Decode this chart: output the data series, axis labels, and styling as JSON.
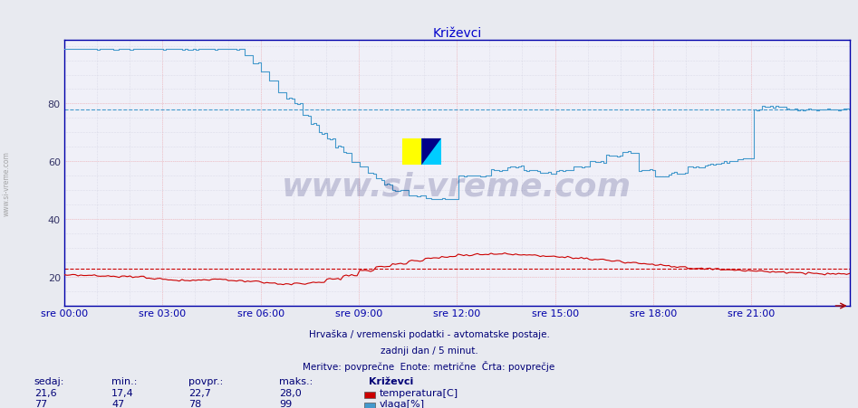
{
  "title": "Križevci",
  "bg_color": "#e8eaf0",
  "plot_bg_color": "#f0f0f8",
  "temp_color": "#cc0000",
  "humid_color": "#4499cc",
  "temp_avg": 22.7,
  "humid_avg": 78.0,
  "ylim": [
    10,
    102
  ],
  "yticks": [
    20,
    40,
    60,
    80
  ],
  "xlabel_color": "#0000aa",
  "xtick_labels": [
    "sre 00:00",
    "sre 03:00",
    "sre 06:00",
    "sre 09:00",
    "sre 12:00",
    "sre 15:00",
    "sre 18:00",
    "sre 21:00"
  ],
  "footer_line1": "Hrvaška / vremenski podatki - avtomatske postaje.",
  "footer_line2": "zadnji dan / 5 minut.",
  "footer_line3": "Meritve: povprečne  Enote: metrične  Črta: povprečje",
  "stats_headers": [
    "sedaj:",
    "min.:",
    "povpr.:",
    "maks.:"
  ],
  "stats_temp": [
    "21,6",
    "17,4",
    "22,7",
    "28,0"
  ],
  "stats_humid": [
    "77",
    "47",
    "78",
    "99"
  ],
  "legend_label_temp": "temperatura[C]",
  "legend_label_humid": "vlaga[%]",
  "station_name": "Križevci",
  "watermark": "www.si-vreme.com"
}
